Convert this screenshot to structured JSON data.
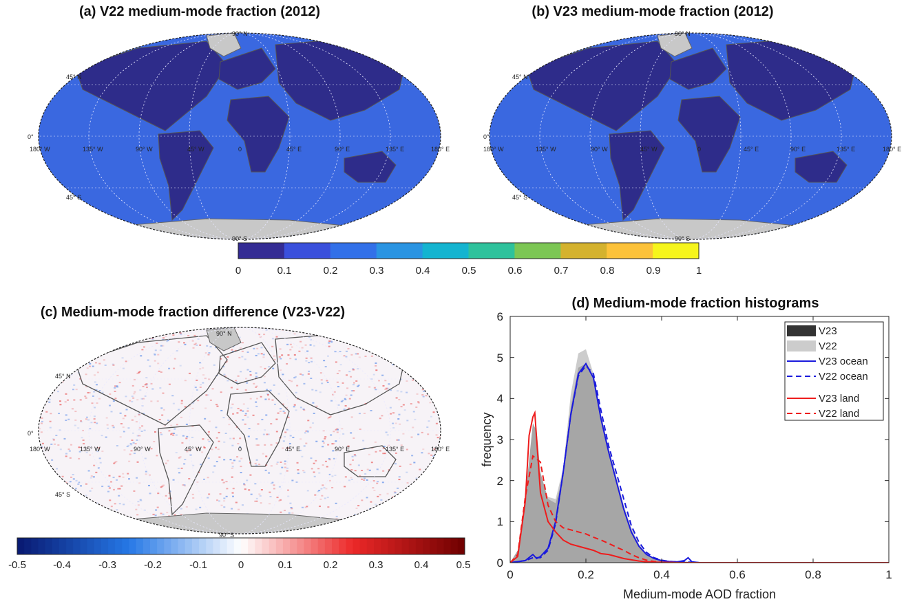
{
  "panels": {
    "a_title": "(a) V22 medium-mode fraction (2012)",
    "b_title": "(b) V23 medium-mode fraction (2012)",
    "c_title": "(c) Medium-mode fraction difference (V23-V22)",
    "d_title": "(d) Medium-mode fraction histograms"
  },
  "map_labels": {
    "lat": [
      "90° N",
      "45° N",
      "0°",
      "45° S",
      "90° S"
    ],
    "lon": [
      "180° W",
      "135° W",
      "90° W",
      "45° W",
      "0",
      "45° E",
      "90° E",
      "135° E",
      "180° E"
    ]
  },
  "colorbar_fraction": {
    "ticks": [
      "0",
      "0.1",
      "0.2",
      "0.3",
      "0.4",
      "0.5",
      "0.6",
      "0.7",
      "0.8",
      "0.9",
      "1"
    ],
    "colors": [
      "#342c94",
      "#3a50dc",
      "#3270e8",
      "#2a94e2",
      "#14b4d0",
      "#2ec29c",
      "#7cc654",
      "#d4b22e",
      "#fcc23a",
      "#f6f51c"
    ]
  },
  "colorbar_difference": {
    "ticks": [
      "-0.5",
      "-0.4",
      "-0.3",
      "-0.2",
      "-0.1",
      "0",
      "0.1",
      "0.2",
      "0.3",
      "0.4",
      "0.5"
    ]
  },
  "colors": {
    "map_ocean": "#3a68e0",
    "map_land": "#2e2c8a",
    "map_ice": "#c8c8c8",
    "v23_fill": "#333333",
    "v22_fill": "#cccccc",
    "overlap_fill": "#a6a6a6",
    "ocean_line": "#1a1adc",
    "land_line": "#ee1c1c"
  },
  "chart_data": {
    "type": "area",
    "title": "(d) Medium-mode fraction histograms",
    "xlabel": "Medium-mode AOD fraction",
    "ylabel": "frequency",
    "xlim": [
      0,
      1
    ],
    "ylim": [
      0,
      6
    ],
    "xticks": [
      "0",
      "0.2",
      "0.4",
      "0.6",
      "0.8",
      "1"
    ],
    "yticks": [
      "0",
      "1",
      "2",
      "3",
      "4",
      "5",
      "6"
    ],
    "legend_position": "top-right",
    "legend": [
      "V23",
      "V22",
      "V23 ocean",
      "V22 ocean",
      "V23 land",
      "V22 land"
    ],
    "series": [
      {
        "name": "V23",
        "style": "filled-dark",
        "x": [
          0,
          0.02,
          0.04,
          0.06,
          0.07,
          0.08,
          0.1,
          0.12,
          0.14,
          0.16,
          0.18,
          0.2,
          0.22,
          0.24,
          0.26,
          0.28,
          0.3,
          0.32,
          0.34,
          0.36,
          0.38,
          0.4,
          0.42,
          0.44,
          0.46,
          0.48,
          0.5,
          1
        ],
        "y": [
          0,
          0.3,
          1.6,
          3.4,
          3.2,
          2.2,
          1.55,
          1.45,
          2.1,
          3.8,
          4.75,
          4.85,
          4.45,
          3.5,
          2.7,
          2.05,
          1.3,
          0.75,
          0.4,
          0.2,
          0.1,
          0.05,
          0.03,
          0.02,
          0.03,
          0.01,
          0,
          0
        ]
      },
      {
        "name": "V22",
        "style": "filled-light",
        "x": [
          0,
          0.02,
          0.04,
          0.06,
          0.07,
          0.08,
          0.1,
          0.12,
          0.14,
          0.16,
          0.18,
          0.2,
          0.22,
          0.24,
          0.26,
          0.28,
          0.3,
          0.32,
          0.34,
          0.36,
          0.38,
          0.4,
          0.42,
          0.44,
          0.46,
          0.48,
          0.5,
          1
        ],
        "y": [
          0,
          0.3,
          1.5,
          2.7,
          2.6,
          2.0,
          1.6,
          1.55,
          2.3,
          4.1,
          5.1,
          5.2,
          4.6,
          3.6,
          2.8,
          2.1,
          1.4,
          0.85,
          0.45,
          0.22,
          0.1,
          0.05,
          0.03,
          0.02,
          0.02,
          0.01,
          0,
          0
        ]
      },
      {
        "name": "V23 ocean",
        "style": "solid-blue",
        "x": [
          0,
          0.04,
          0.06,
          0.07,
          0.08,
          0.1,
          0.12,
          0.14,
          0.16,
          0.18,
          0.2,
          0.22,
          0.24,
          0.26,
          0.28,
          0.3,
          0.32,
          0.34,
          0.36,
          0.38,
          0.4,
          0.42,
          0.44,
          0.46,
          0.47,
          0.48,
          0.5,
          1
        ],
        "y": [
          0,
          0.05,
          0.2,
          0.1,
          0.15,
          0.35,
          1.0,
          2.2,
          3.6,
          4.6,
          4.85,
          4.5,
          3.5,
          2.7,
          2.0,
          1.3,
          0.75,
          0.4,
          0.2,
          0.1,
          0.05,
          0.03,
          0.02,
          0.05,
          0.12,
          0.02,
          0,
          0
        ]
      },
      {
        "name": "V22 ocean",
        "style": "dashed-blue",
        "x": [
          0,
          0.04,
          0.06,
          0.08,
          0.1,
          0.12,
          0.14,
          0.16,
          0.18,
          0.2,
          0.22,
          0.24,
          0.26,
          0.28,
          0.3,
          0.32,
          0.34,
          0.36,
          0.38,
          0.4,
          0.42,
          0.44,
          0.46,
          0.48,
          0.5,
          1
        ],
        "y": [
          0,
          0.05,
          0.12,
          0.12,
          0.3,
          0.95,
          2.2,
          3.6,
          4.55,
          4.8,
          4.6,
          3.7,
          2.85,
          2.2,
          1.55,
          0.9,
          0.5,
          0.25,
          0.12,
          0.06,
          0.03,
          0.02,
          0.02,
          0.01,
          0,
          0
        ]
      },
      {
        "name": "V23 land",
        "style": "solid-red",
        "x": [
          0,
          0.02,
          0.04,
          0.05,
          0.06,
          0.065,
          0.07,
          0.08,
          0.1,
          0.12,
          0.14,
          0.16,
          0.18,
          0.2,
          0.22,
          0.24,
          0.26,
          0.28,
          0.3,
          0.32,
          0.34,
          0.36,
          0.38,
          0.4,
          0.45,
          0.5,
          1
        ],
        "y": [
          0,
          0.15,
          1.5,
          3.1,
          3.55,
          3.65,
          3.0,
          1.7,
          1.0,
          0.75,
          0.55,
          0.45,
          0.4,
          0.35,
          0.3,
          0.22,
          0.2,
          0.15,
          0.1,
          0.07,
          0.04,
          0.02,
          0.01,
          0.01,
          0,
          0,
          0
        ]
      },
      {
        "name": "V22 land",
        "style": "dashed-red",
        "x": [
          0,
          0.02,
          0.04,
          0.06,
          0.08,
          0.1,
          0.12,
          0.14,
          0.16,
          0.18,
          0.2,
          0.22,
          0.24,
          0.26,
          0.28,
          0.3,
          0.32,
          0.34,
          0.36,
          0.38,
          0.4,
          0.45,
          0.5,
          1
        ],
        "y": [
          0,
          0.2,
          1.6,
          2.6,
          2.45,
          1.4,
          1.0,
          0.85,
          0.8,
          0.75,
          0.7,
          0.62,
          0.55,
          0.47,
          0.38,
          0.3,
          0.2,
          0.12,
          0.06,
          0.03,
          0.01,
          0,
          0,
          0
        ]
      }
    ]
  }
}
